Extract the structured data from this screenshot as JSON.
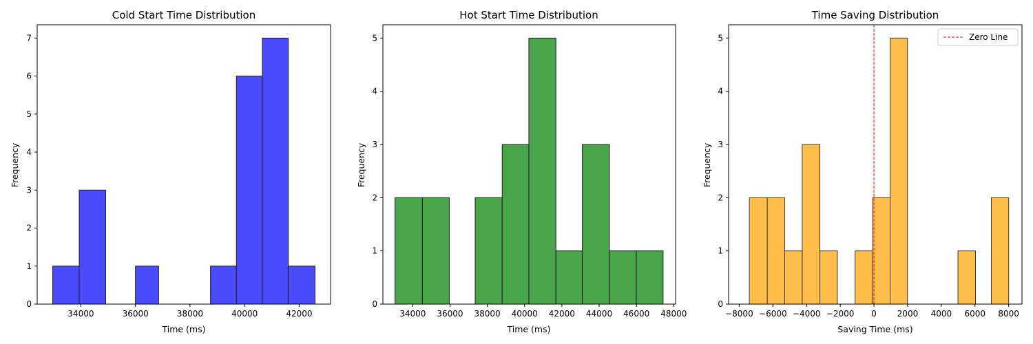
{
  "chart_data": [
    {
      "type": "bar",
      "title": "Cold Start Time Distribution",
      "xlabel": "Time (ms)",
      "ylabel": "Frequency",
      "color": "#4a4aff",
      "edge_color": "#1a1a1a",
      "xlim": [
        32400,
        43150
      ],
      "ylim": [
        0,
        7.35
      ],
      "xticks": [
        34000,
        36000,
        38000,
        40000,
        42000
      ],
      "yticks": [
        0,
        1,
        2,
        3,
        4,
        5,
        6,
        7
      ],
      "bins": [
        {
          "x0": 32970,
          "x1": 33940,
          "count": 1
        },
        {
          "x0": 33940,
          "x1": 34910,
          "count": 3
        },
        {
          "x0": 36000,
          "x1": 36850,
          "count": 1
        },
        {
          "x0": 38750,
          "x1": 39700,
          "count": 1
        },
        {
          "x0": 39700,
          "x1": 40650,
          "count": 6
        },
        {
          "x0": 40650,
          "x1": 41600,
          "count": 7
        },
        {
          "x0": 41600,
          "x1": 42580,
          "count": 1
        }
      ]
    },
    {
      "type": "bar",
      "title": "Hot Start Time Distribution",
      "xlabel": "Time (ms)",
      "ylabel": "Frequency",
      "color": "#4aa64a",
      "edge_color": "#1a1a1a",
      "xlim": [
        32400,
        48100
      ],
      "ylim": [
        0,
        5.25
      ],
      "xticks": [
        34000,
        36000,
        38000,
        40000,
        42000,
        44000,
        46000,
        48000
      ],
      "yticks": [
        0,
        1,
        2,
        3,
        4,
        5
      ],
      "bins": [
        {
          "x0": 33050,
          "x1": 34520,
          "count": 2
        },
        {
          "x0": 34520,
          "x1": 35960,
          "count": 2
        },
        {
          "x0": 37350,
          "x1": 38800,
          "count": 2
        },
        {
          "x0": 38800,
          "x1": 40230,
          "count": 3
        },
        {
          "x0": 40230,
          "x1": 41680,
          "count": 5
        },
        {
          "x0": 41680,
          "x1": 43100,
          "count": 1
        },
        {
          "x0": 43100,
          "x1": 44550,
          "count": 3
        },
        {
          "x0": 44550,
          "x1": 45990,
          "count": 1
        },
        {
          "x0": 45990,
          "x1": 47430,
          "count": 1
        }
      ]
    },
    {
      "type": "bar",
      "title": "Time Saving Distribution",
      "xlabel": "Saving Time (ms)",
      "ylabel": "Frequency",
      "color": "#ffbd4a",
      "edge_color": "#3a3a3a",
      "xlim": [
        -8630,
        8790
      ],
      "ylim": [
        0,
        5.25
      ],
      "xticks": [
        -8000,
        -6000,
        -4000,
        -2000,
        0,
        2000,
        4000,
        6000,
        8000
      ],
      "yticks": [
        0,
        1,
        2,
        3,
        4,
        5
      ],
      "bins": [
        {
          "x0": -7400,
          "x1": -6330,
          "count": 2
        },
        {
          "x0": -6330,
          "x1": -5300,
          "count": 2
        },
        {
          "x0": -5300,
          "x1": -4260,
          "count": 1
        },
        {
          "x0": -4260,
          "x1": -3210,
          "count": 3
        },
        {
          "x0": -3210,
          "x1": -2170,
          "count": 1
        },
        {
          "x0": -1120,
          "x1": -80,
          "count": 1
        },
        {
          "x0": -80,
          "x1": 960,
          "count": 2
        },
        {
          "x0": 960,
          "x1": 1990,
          "count": 5
        },
        {
          "x0": 4990,
          "x1": 6030,
          "count": 1
        },
        {
          "x0": 6970,
          "x1": 8000,
          "count": 2
        }
      ],
      "reference_line": {
        "x": 0,
        "color": "#ff0000",
        "style": "dashed",
        "label": "Zero Line"
      },
      "legend": {
        "placement": "top-right",
        "entries": [
          "Zero Line"
        ]
      }
    }
  ]
}
